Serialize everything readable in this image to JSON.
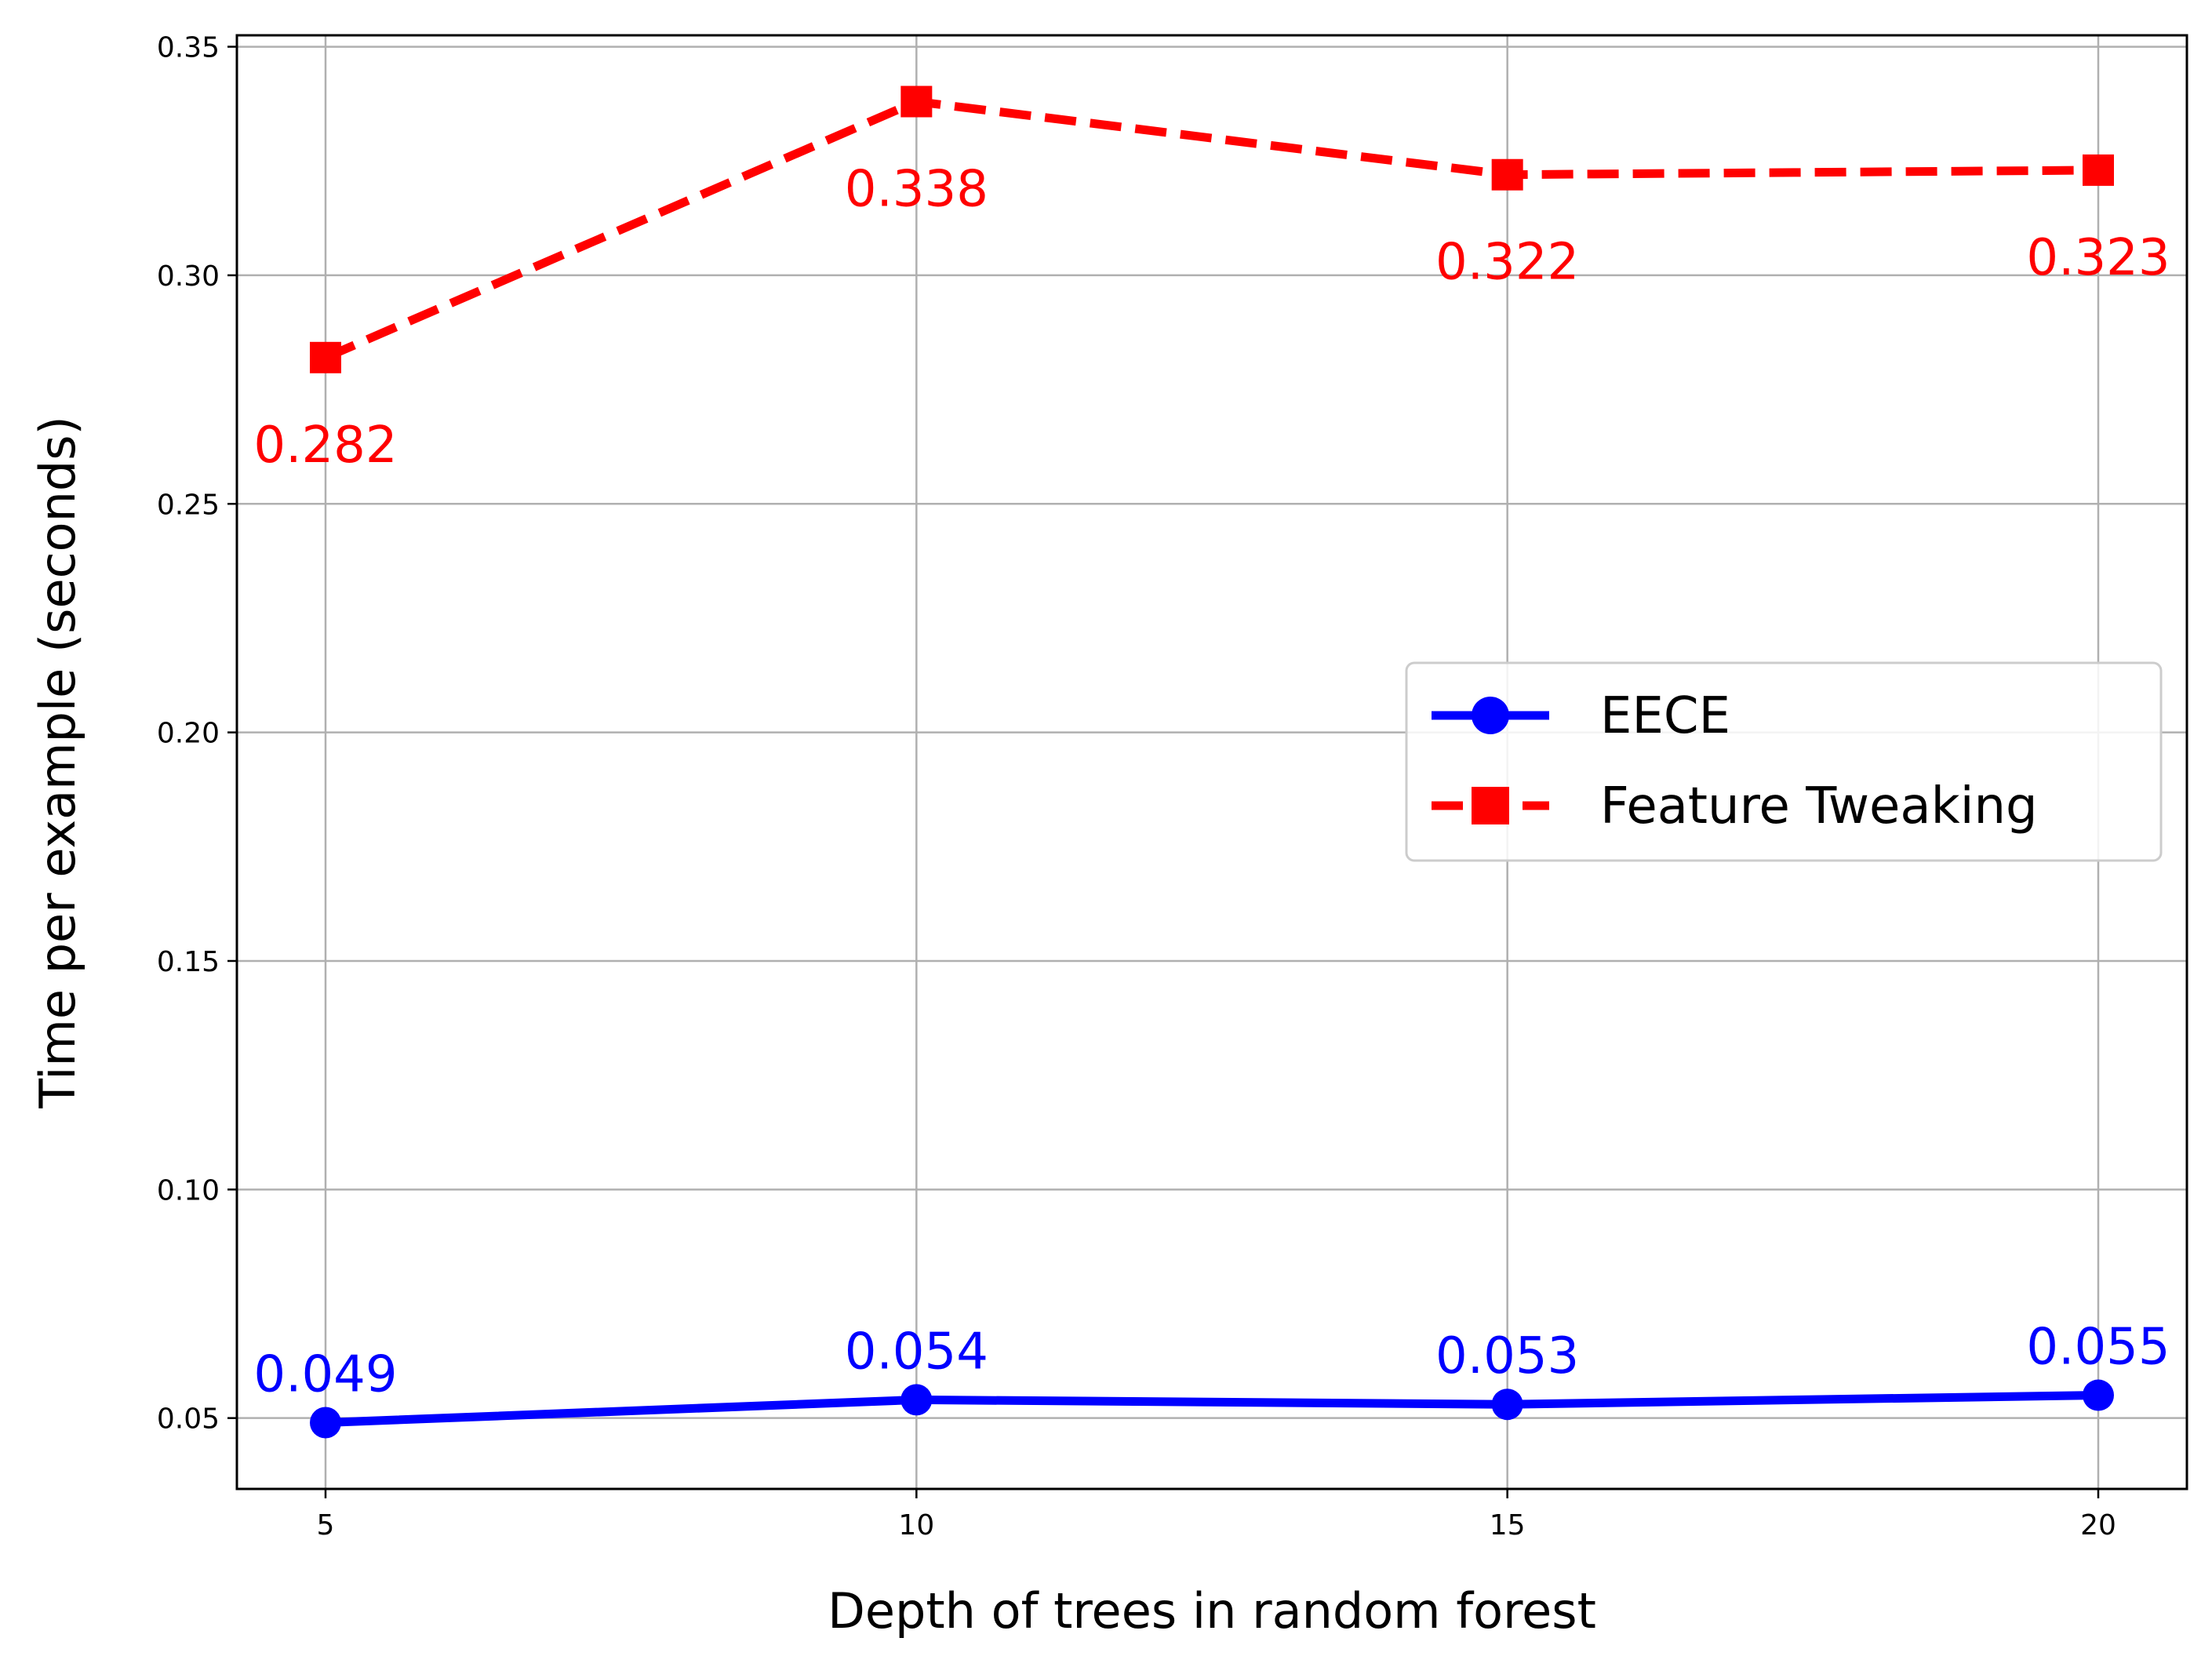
{
  "chart_data": {
    "type": "line",
    "title": "",
    "xlabel": "Depth of trees in random forest",
    "ylabel": "Time per example (seconds)",
    "x": [
      5,
      10,
      15,
      20
    ],
    "xlim": [
      4.25,
      20.75
    ],
    "ylim": [
      0.0345,
      0.3525
    ],
    "xticks": [
      5,
      10,
      15,
      20
    ],
    "xtick_labels": [
      "5",
      "10",
      "15",
      "20"
    ],
    "yticks": [
      0.05,
      0.1,
      0.15,
      0.2,
      0.25,
      0.3,
      0.35
    ],
    "ytick_labels": [
      "0.05",
      "0.10",
      "0.15",
      "0.20",
      "0.25",
      "0.30",
      "0.35"
    ],
    "grid": true,
    "legend_position": "center-right",
    "series": [
      {
        "name": "EECE",
        "values": [
          0.049,
          0.054,
          0.053,
          0.055
        ],
        "data_labels": [
          "0.049",
          "0.054",
          "0.053",
          "0.055"
        ],
        "color": "#0000ff",
        "line_style": "solid",
        "marker": "circle",
        "label_placement": "above"
      },
      {
        "name": "Feature Tweaking",
        "values": [
          0.282,
          0.338,
          0.322,
          0.323
        ],
        "data_labels": [
          "0.282",
          "0.338",
          "0.322",
          "0.323"
        ],
        "color": "#ff0000",
        "line_style": "dashed",
        "marker": "square",
        "label_placement": "below"
      }
    ]
  }
}
